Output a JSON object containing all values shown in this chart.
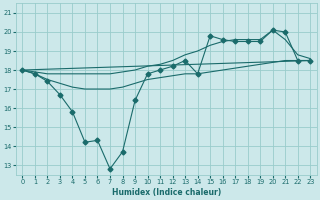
{
  "xlabel": "Humidex (Indice chaleur)",
  "background_color": "#cce8ea",
  "grid_color": "#99cccc",
  "line_color": "#1a6b6b",
  "xlim": [
    -0.5,
    23.5
  ],
  "ylim": [
    12.5,
    21.5
  ],
  "yticks": [
    13,
    14,
    15,
    16,
    17,
    18,
    19,
    20,
    21
  ],
  "xticks": [
    0,
    1,
    2,
    3,
    4,
    5,
    6,
    7,
    8,
    9,
    10,
    11,
    12,
    13,
    14,
    15,
    16,
    17,
    18,
    19,
    20,
    21,
    22,
    23
  ],
  "xtick_labels": [
    "0",
    "1",
    "2",
    "3",
    "4",
    "5",
    "6",
    "7",
    "8",
    "9",
    "10",
    "11",
    "12",
    "13",
    "14",
    "15",
    "16",
    "17",
    "18",
    "19",
    "20",
    "21",
    "22",
    "23"
  ],
  "series": [
    {
      "x": [
        0,
        1,
        2,
        3,
        4,
        5,
        6,
        7,
        8,
        9,
        10,
        11,
        12,
        13,
        14,
        15,
        16,
        17,
        18,
        19,
        20,
        21,
        22,
        23
      ],
      "y": [
        18.0,
        17.8,
        17.4,
        16.7,
        15.8,
        14.2,
        14.3,
        12.8,
        13.7,
        16.4,
        17.8,
        18.0,
        18.2,
        18.5,
        17.8,
        19.8,
        19.6,
        19.5,
        19.5,
        19.5,
        20.1,
        20.0,
        18.5,
        18.5
      ],
      "marker": "D",
      "markersize": 2.5
    },
    {
      "x": [
        0,
        23
      ],
      "y": [
        18.0,
        18.5
      ],
      "marker": null,
      "markersize": 0
    },
    {
      "x": [
        0,
        1,
        2,
        3,
        4,
        5,
        6,
        7,
        8,
        9,
        10,
        11,
        12,
        13,
        14,
        15,
        16,
        17,
        18,
        19,
        20,
        21,
        22,
        23
      ],
      "y": [
        18.0,
        17.9,
        17.8,
        17.8,
        17.8,
        17.8,
        17.8,
        17.8,
        17.9,
        18.0,
        18.2,
        18.3,
        18.5,
        18.8,
        19.0,
        19.3,
        19.5,
        19.6,
        19.6,
        19.6,
        20.1,
        19.6,
        18.8,
        18.6
      ],
      "marker": null,
      "markersize": 0
    },
    {
      "x": [
        0,
        1,
        2,
        3,
        4,
        5,
        6,
        7,
        8,
        9,
        10,
        11,
        12,
        13,
        14,
        15,
        16,
        17,
        18,
        19,
        20,
        21,
        22,
        23
      ],
      "y": [
        18.0,
        17.8,
        17.5,
        17.3,
        17.1,
        17.0,
        17.0,
        17.0,
        17.1,
        17.3,
        17.5,
        17.6,
        17.7,
        17.8,
        17.8,
        17.9,
        18.0,
        18.1,
        18.2,
        18.3,
        18.4,
        18.5,
        18.5,
        18.5
      ],
      "marker": null,
      "markersize": 0
    }
  ]
}
